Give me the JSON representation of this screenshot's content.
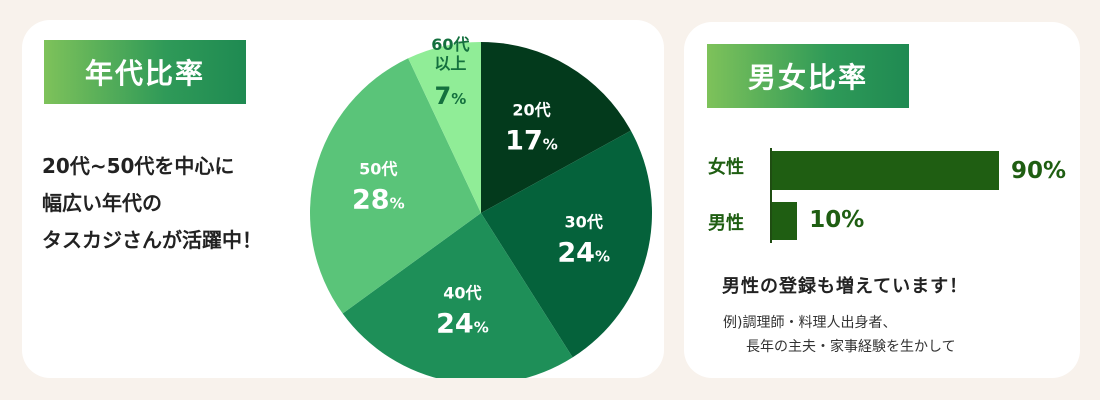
{
  "age_panel": {
    "heading": "年代比率",
    "description": [
      "20代~50代を中心に",
      "幅広い年代の",
      "タスカジさんが活躍中！"
    ]
  },
  "gender_panel": {
    "heading": "男女比率",
    "bars": [
      {
        "label": "女性",
        "value": 90,
        "display": "90%"
      },
      {
        "label": "男性",
        "value": 10,
        "display": "10%"
      }
    ],
    "note_title": "男性の登録も増えています！",
    "note_lines": [
      "例)調理師・料理人出身者、",
      "長年の主夫・家事経験を生かして"
    ]
  },
  "colors": {
    "page_bg": "#f8f2ec",
    "card_bg": "#ffffff",
    "bar_color": "#1f5e12",
    "slices": [
      "#033a1c",
      "#05623b",
      "#1e8f58",
      "#5ac479",
      "#90ed97"
    ]
  },
  "chart_data": [
    {
      "type": "pie",
      "categories": [
        "20代",
        "30代",
        "40代",
        "50代",
        "60代以上"
      ],
      "values": [
        17,
        24,
        24,
        28,
        7
      ],
      "unit": "%",
      "title": "年代比率"
    },
    {
      "type": "bar",
      "orientation": "horizontal",
      "categories": [
        "女性",
        "男性"
      ],
      "values": [
        90,
        10
      ],
      "unit": "%",
      "title": "男女比率"
    }
  ]
}
